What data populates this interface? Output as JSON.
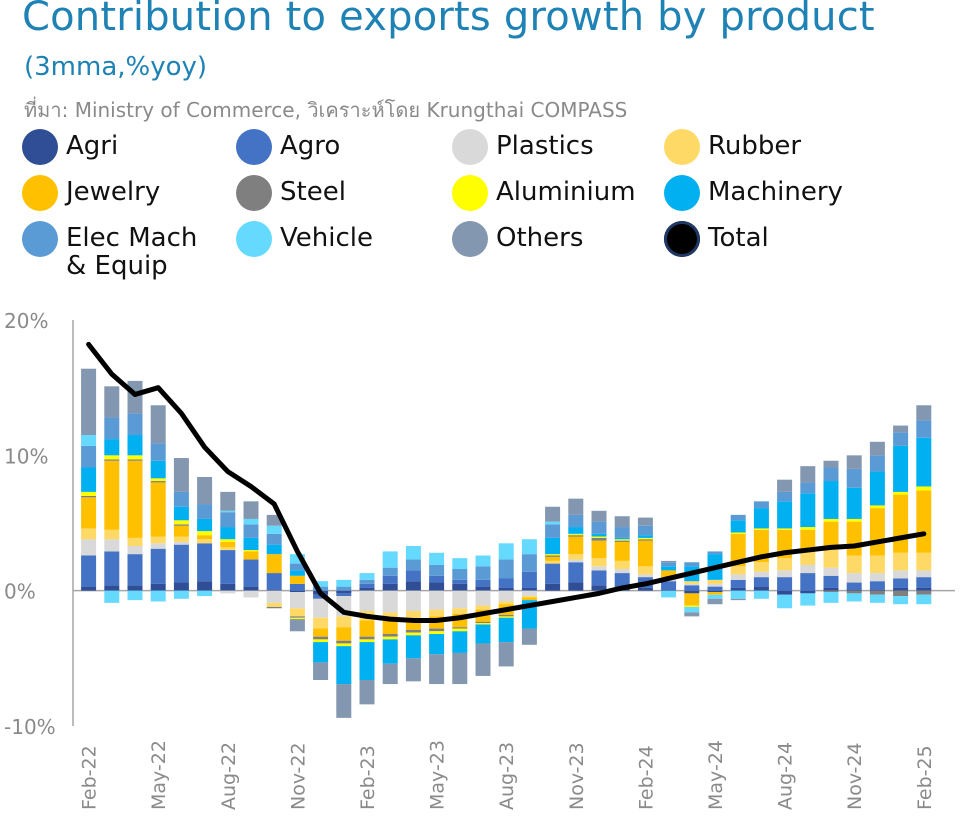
{
  "header": {
    "title": "Contribution to exports growth by product",
    "subtitle": "(3mma,%yoy)",
    "source": "ที่มา: Ministry of Commerce, วิเคราะห์โดย Krungthai COMPASS"
  },
  "legend": [
    {
      "name": "Agri",
      "color": "#2f4e96"
    },
    {
      "name": "Agro",
      "color": "#4472c4"
    },
    {
      "name": "Plastics",
      "color": "#d9d9d9"
    },
    {
      "name": "Rubber",
      "color": "#ffd966"
    },
    {
      "name": "Jewelry",
      "color": "#ffc000"
    },
    {
      "name": "Steel",
      "color": "#7f7f7f"
    },
    {
      "name": "Aluminium",
      "color": "#ffff00"
    },
    {
      "name": "Machinery",
      "color": "#00b0f0"
    },
    {
      "name": "Elec Mach\n& Equip",
      "color": "#5b9bd5"
    },
    {
      "name": "Vehicle",
      "color": "#66d9ff"
    },
    {
      "name": "Others",
      "color": "#8497b0"
    },
    {
      "name": "Total",
      "color": "#000000"
    }
  ],
  "chart_data": {
    "type": "bar",
    "stacked": true,
    "categories": [
      "Feb-22",
      "Mar-22",
      "Apr-22",
      "May-22",
      "Jun-22",
      "Jul-22",
      "Aug-22",
      "Sep-22",
      "Oct-22",
      "Nov-22",
      "Dec-22",
      "Jan-23",
      "Feb-23",
      "Mar-23",
      "Apr-23",
      "May-23",
      "Jun-23",
      "Jul-23",
      "Aug-23",
      "Sep-23",
      "Oct-23",
      "Nov-23",
      "Dec-23",
      "Jan-24",
      "Feb-24",
      "Mar-24",
      "Apr-24",
      "May-24",
      "Jun-24",
      "Jul-24",
      "Aug-24",
      "Sep-24",
      "Oct-24",
      "Nov-24",
      "Dec-24",
      "Jan-25",
      "Feb-25"
    ],
    "tick_labels": [
      "Feb-22",
      "May-22",
      "Aug-22",
      "Nov-22",
      "Feb-23",
      "May-23",
      "Aug-23",
      "Nov-23",
      "Feb-24",
      "May-24",
      "Aug-24",
      "Nov-24",
      "Feb-25"
    ],
    "y_ticks": [
      "20%",
      "10%",
      "0%",
      "-10%"
    ],
    "ylim": [
      -10,
      20
    ],
    "series": [
      {
        "name": "Agri",
        "color": "#2f4e96",
        "values": [
          0.3,
          0.4,
          0.4,
          0.5,
          0.6,
          0.7,
          0.5,
          0.3,
          0.1,
          -0.1,
          -0.3,
          -0.2,
          0.2,
          0.5,
          0.7,
          0.6,
          0.5,
          0.3,
          0.2,
          0.2,
          0.5,
          0.6,
          0.4,
          0.3,
          0.2,
          0.1,
          -0.2,
          -0.1,
          0.2,
          0.3,
          -0.3,
          -0.2,
          0.2,
          0.1,
          0.1,
          0.2,
          0.2
        ]
      },
      {
        "name": "Agro",
        "color": "#4472c4",
        "values": [
          2.3,
          2.5,
          2.3,
          2.6,
          2.8,
          2.8,
          2.5,
          2.0,
          1.2,
          0.5,
          -0.3,
          -0.2,
          0.3,
          0.6,
          0.8,
          0.5,
          0.3,
          0.5,
          0.7,
          1.2,
          1.5,
          1.5,
          1.1,
          1.0,
          0.8,
          0.6,
          0.4,
          0.3,
          0.6,
          0.7,
          1.0,
          1.3,
          0.9,
          0.5,
          0.6,
          0.7,
          0.8
        ]
      },
      {
        "name": "Plastics",
        "color": "#d9d9d9",
        "values": [
          1.2,
          0.9,
          0.6,
          0.4,
          0.2,
          0.0,
          -0.2,
          -0.5,
          -0.9,
          -1.2,
          -1.4,
          -1.5,
          -1.5,
          -1.6,
          -1.5,
          -1.4,
          -1.3,
          -1.1,
          -0.8,
          -0.4,
          0.0,
          0.2,
          0.3,
          0.3,
          0.2,
          0.1,
          0.1,
          0.2,
          0.4,
          0.4,
          0.5,
          0.6,
          0.6,
          0.7,
          0.6,
          0.6,
          0.5
        ]
      },
      {
        "name": "Rubber",
        "color": "#ffd966",
        "values": [
          0.8,
          0.7,
          0.6,
          0.5,
          0.4,
          0.3,
          0.2,
          0.0,
          -0.3,
          -0.6,
          -0.8,
          -0.8,
          -0.7,
          -0.6,
          -0.6,
          -0.5,
          -0.4,
          -0.3,
          -0.2,
          -0.1,
          0.2,
          0.4,
          0.6,
          0.6,
          0.6,
          0.2,
          0.2,
          0.3,
          0.6,
          0.7,
          0.9,
          1.2,
          1.4,
          1.3,
          1.3,
          1.3,
          1.3
        ]
      },
      {
        "name": "Jewelry",
        "color": "#ffc000",
        "values": [
          2.3,
          5.1,
          5.7,
          4.0,
          0.8,
          0.3,
          0.4,
          0.6,
          1.4,
          0.6,
          -0.6,
          -1.0,
          -1.2,
          -1.0,
          -0.8,
          -0.9,
          -1.0,
          -0.9,
          -0.8,
          -0.2,
          0.3,
          1.3,
          1.3,
          1.4,
          1.9,
          0.5,
          -0.9,
          -0.2,
          2.4,
          2.4,
          2.1,
          1.4,
          2.0,
          2.5,
          3.5,
          4.3,
          4.6
        ]
      },
      {
        "name": "Steel",
        "color": "#7f7f7f",
        "values": [
          0.1,
          0.1,
          0.1,
          0.1,
          0.1,
          0.0,
          0.0,
          0.0,
          -0.1,
          -0.1,
          -0.2,
          -0.2,
          -0.2,
          -0.2,
          -0.2,
          -0.2,
          -0.1,
          -0.1,
          -0.1,
          0.0,
          0.1,
          0.1,
          0.2,
          0.1,
          0.1,
          0.0,
          0.0,
          0.0,
          0.0,
          0.0,
          0.0,
          0.0,
          -0.1,
          -0.2,
          -0.3,
          -0.4,
          -0.3
        ]
      },
      {
        "name": "Aluminium",
        "color": "#ffff00",
        "values": [
          0.3,
          0.3,
          0.3,
          0.2,
          0.3,
          0.3,
          0.2,
          0.1,
          0.0,
          -0.1,
          -0.2,
          -0.2,
          -0.2,
          -0.2,
          -0.2,
          -0.2,
          -0.2,
          -0.1,
          -0.1,
          0.0,
          0.1,
          0.1,
          0.1,
          0.1,
          0.1,
          0.0,
          -0.1,
          0.0,
          0.1,
          0.1,
          0.1,
          0.2,
          0.2,
          0.2,
          0.2,
          0.2,
          0.3
        ]
      },
      {
        "name": "Machinery",
        "color": "#00b0f0",
        "values": [
          1.8,
          1.2,
          1.5,
          1.3,
          1.0,
          0.9,
          0.9,
          0.9,
          0.7,
          0.4,
          -1.5,
          -2.8,
          -2.8,
          -1.8,
          -1.7,
          -1.5,
          -1.6,
          -1.4,
          -1.8,
          -2.1,
          1.2,
          0.5,
          0.2,
          0.1,
          0.2,
          0.3,
          1.1,
          1.9,
          0.9,
          1.5,
          2.0,
          2.5,
          2.8,
          2.3,
          2.5,
          3.4,
          3.6
        ]
      },
      {
        "name": "Elec Mach & Equip",
        "color": "#5b9bd5",
        "values": [
          1.6,
          1.6,
          1.6,
          1.3,
          1.1,
          1.1,
          1.1,
          1.0,
          0.8,
          0.5,
          0.3,
          0.3,
          0.3,
          0.6,
          0.8,
          0.8,
          0.8,
          1.0,
          1.4,
          1.3,
          1.0,
          0.9,
          0.9,
          0.8,
          0.7,
          0.3,
          0.3,
          0.2,
          0.4,
          0.5,
          0.7,
          0.8,
          1.0,
          1.4,
          1.2,
          1.0,
          1.3
        ]
      },
      {
        "name": "Vehicle",
        "color": "#66d9ff",
        "values": [
          0.8,
          -0.9,
          -0.7,
          -0.8,
          -0.6,
          -0.4,
          0.1,
          0.4,
          0.6,
          0.7,
          0.4,
          0.5,
          0.5,
          1.2,
          1.0,
          0.9,
          0.8,
          0.8,
          1.2,
          1.1,
          0.2,
          0.0,
          0.0,
          0.0,
          0.0,
          -0.5,
          -0.4,
          -0.3,
          -0.6,
          -0.6,
          -1.0,
          -0.9,
          -0.8,
          -0.6,
          -0.6,
          -0.6,
          -0.7
        ]
      },
      {
        "name": "Others",
        "color": "#8497b0",
        "values": [
          4.9,
          2.3,
          2.4,
          2.8,
          2.5,
          2.0,
          1.4,
          1.3,
          0.8,
          -0.9,
          -1.3,
          -2.5,
          -1.8,
          -1.5,
          -1.7,
          -2.2,
          -2.3,
          -2.4,
          -1.8,
          -1.2,
          1.1,
          1.2,
          0.8,
          0.8,
          0.6,
          0.1,
          -0.3,
          -0.4,
          -0.1,
          0.0,
          0.9,
          1.2,
          0.5,
          1.0,
          1.0,
          0.5,
          1.1
        ]
      }
    ],
    "total": [
      18.2,
      16.0,
      14.5,
      15.0,
      13.1,
      10.6,
      8.8,
      7.7,
      6.4,
      2.9,
      -0.2,
      -1.6,
      -1.9,
      -2.1,
      -2.2,
      -2.2,
      -2.0,
      -1.7,
      -1.4,
      -1.1,
      -0.8,
      -0.5,
      -0.2,
      0.2,
      0.5,
      0.9,
      1.3,
      1.7,
      2.1,
      2.5,
      2.8,
      3.0,
      3.2,
      3.3,
      3.6,
      3.9,
      4.2
    ]
  }
}
